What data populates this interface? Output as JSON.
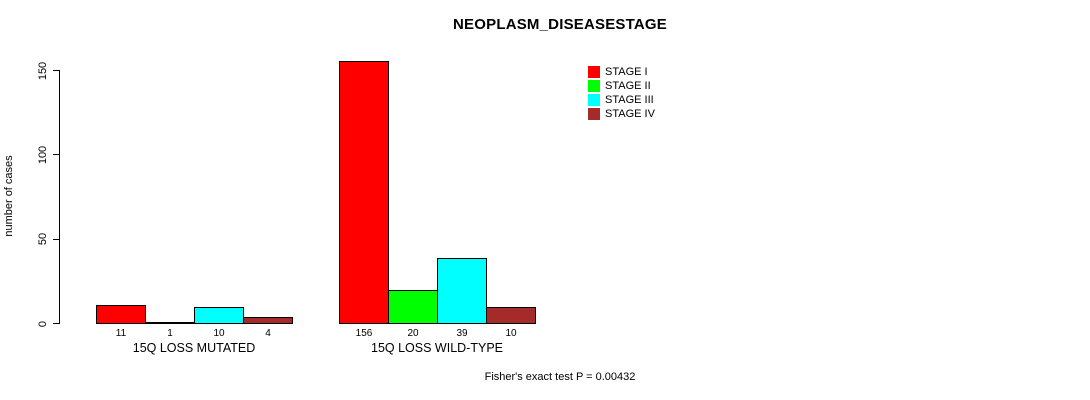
{
  "chart_data": {
    "type": "bar",
    "title": "NEOPLASM_DISEASESTAGE",
    "ylabel": "number of cases",
    "xlabel": "",
    "ylim": [
      0,
      150
    ],
    "yticks": [
      0,
      50,
      100,
      150
    ],
    "grid": false,
    "legend_position": "top-right",
    "groups": [
      "15Q LOSS MUTATED",
      "15Q LOSS WILD-TYPE"
    ],
    "series": [
      {
        "name": "STAGE I",
        "color": "#FF0000",
        "values": [
          11,
          156
        ]
      },
      {
        "name": "STAGE II",
        "color": "#00FF00",
        "values": [
          1,
          20
        ]
      },
      {
        "name": "STAGE III",
        "color": "#00FFFF",
        "values": [
          10,
          39
        ]
      },
      {
        "name": "STAGE IV",
        "color": "#A52A2A",
        "values": [
          4,
          10
        ]
      }
    ],
    "bar_value_labels": [
      [
        "11",
        "1",
        "10",
        "4"
      ],
      [
        "156",
        "20",
        "39",
        "10"
      ]
    ],
    "annotation": "Fisher's exact test P = 0.00432"
  }
}
